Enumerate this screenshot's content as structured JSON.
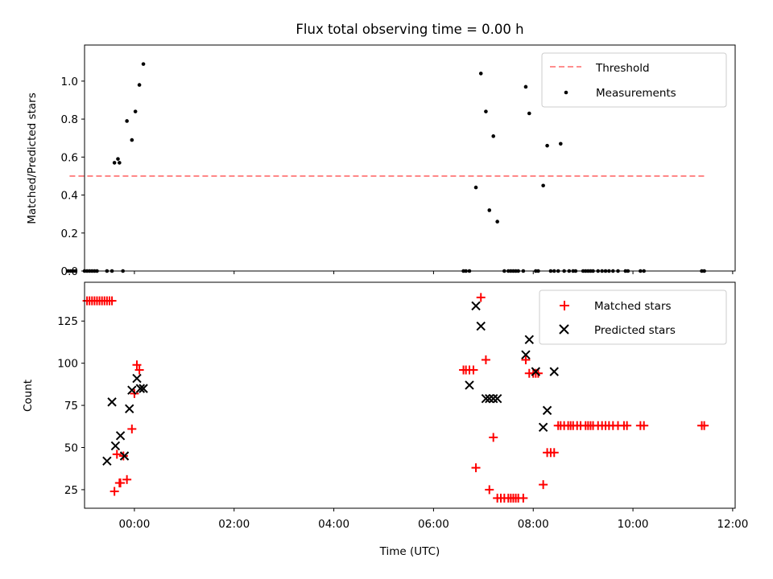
{
  "chart_data": [
    {
      "type": "scatter",
      "title": "Flux total observing time = 0.00 h",
      "xlabel": "",
      "ylabel": "Matched/Predicted stars",
      "xlim": [
        -1.0,
        12.05
      ],
      "ylim": [
        0.0,
        1.19
      ],
      "xticks": [
        0,
        2,
        4,
        6,
        8,
        10,
        12
      ],
      "yticks": [
        0.0,
        0.2,
        0.4,
        0.6,
        0.8,
        1.0
      ],
      "ytick_labels": [
        "0.0",
        "0.2",
        "0.4",
        "0.6",
        "0.8",
        "1.0"
      ],
      "legend_position": "top-right",
      "threshold": {
        "name": "Threshold",
        "value": 0.5,
        "x_range": [
          -1.3,
          11.45
        ],
        "color": "#ff7f7f"
      },
      "series": [
        {
          "name": "Measurements",
          "color": "#000000",
          "x": [
            -1.33,
            -1.28,
            -1.23,
            -1.18,
            -1.0,
            -0.95,
            -0.9,
            -0.85,
            -0.8,
            -0.75,
            -0.55,
            -0.45,
            -0.4,
            -0.33,
            -0.3,
            -0.23,
            -0.15,
            -0.05,
            0.02,
            0.1,
            0.18,
            6.6,
            6.65,
            6.72,
            6.85,
            6.95,
            7.05,
            7.12,
            7.2,
            7.28,
            7.42,
            7.5,
            7.55,
            7.6,
            7.65,
            7.7,
            7.8,
            7.85,
            7.92,
            8.05,
            8.1,
            8.2,
            8.28,
            8.35,
            8.42,
            8.5,
            8.55,
            8.62,
            8.72,
            8.8,
            8.85,
            9.0,
            9.05,
            9.1,
            9.15,
            9.2,
            9.3,
            9.38,
            9.45,
            9.52,
            9.6,
            9.7,
            9.85,
            9.9,
            10.15,
            10.22,
            11.38,
            11.43
          ],
          "y": [
            0.0,
            0.0,
            0.0,
            0.0,
            0.0,
            0.0,
            0.0,
            0.0,
            0.0,
            0.0,
            0.0,
            0.0,
            0.57,
            0.59,
            0.57,
            0.0,
            0.79,
            0.69,
            0.84,
            0.98,
            1.09,
            0.0,
            0.0,
            0.0,
            0.44,
            1.04,
            0.84,
            0.32,
            0.71,
            0.26,
            0.0,
            0.0,
            0.0,
            0.0,
            0.0,
            0.0,
            0.0,
            0.97,
            0.83,
            0.0,
            0.0,
            0.45,
            0.66,
            0.0,
            0.0,
            0.0,
            0.67,
            0.0,
            0.0,
            0.0,
            0.0,
            0.0,
            0.0,
            0.0,
            0.0,
            0.0,
            0.0,
            0.0,
            0.0,
            0.0,
            0.0,
            0.0,
            0.0,
            0.0,
            0.0,
            0.0,
            0.0,
            0.0
          ]
        }
      ]
    },
    {
      "type": "scatter",
      "title": "",
      "xlabel": "Time (UTC)",
      "ylabel": "Count",
      "xlim": [
        -1.0,
        12.05
      ],
      "ylim": [
        14,
        148
      ],
      "xticks": [
        0,
        2,
        4,
        6,
        8,
        10,
        12
      ],
      "xtick_labels": [
        "00:00",
        "02:00",
        "04:00",
        "06:00",
        "08:00",
        "10:00",
        "12:00"
      ],
      "yticks": [
        25,
        50,
        75,
        100,
        125
      ],
      "legend_position": "top-right",
      "series": [
        {
          "name": "Matched stars",
          "color": "#ff0000",
          "marker": "+",
          "x": [
            -0.95,
            -0.9,
            -0.85,
            -0.8,
            -0.75,
            -0.7,
            -0.65,
            -0.6,
            -0.55,
            -0.5,
            -0.45,
            -0.4,
            -0.35,
            -0.3,
            -0.28,
            -0.22,
            -0.15,
            -0.05,
            0.0,
            0.05,
            0.1,
            6.6,
            6.65,
            6.72,
            6.8,
            6.85,
            6.95,
            7.05,
            7.12,
            7.2,
            7.28,
            7.35,
            7.42,
            7.5,
            7.55,
            7.6,
            7.65,
            7.7,
            7.8,
            7.85,
            7.92,
            8.0,
            8.05,
            8.1,
            8.2,
            8.28,
            8.35,
            8.42,
            8.5,
            8.55,
            8.62,
            8.7,
            8.75,
            8.8,
            8.88,
            8.95,
            9.05,
            9.1,
            9.15,
            9.2,
            9.3,
            9.38,
            9.45,
            9.52,
            9.6,
            9.7,
            9.82,
            9.88,
            10.15,
            10.22,
            11.38,
            11.43
          ],
          "y": [
            137,
            137,
            137,
            137,
            137,
            137,
            137,
            137,
            137,
            137,
            137,
            24,
            46,
            29,
            29,
            45,
            31,
            61,
            82,
            99,
            96,
            96,
            96,
            96,
            96,
            38,
            139,
            102,
            25,
            56,
            20,
            20,
            20,
            20,
            20,
            20,
            20,
            20,
            20,
            102,
            94,
            94,
            94,
            94,
            28,
            47,
            47,
            47,
            63,
            63,
            63,
            63,
            63,
            63,
            63,
            63,
            63,
            63,
            63,
            63,
            63,
            63,
            63,
            63,
            63,
            63,
            63,
            63,
            63,
            63,
            63,
            63
          ]
        },
        {
          "name": "Predicted stars",
          "color": "#000000",
          "marker": "x",
          "x": [
            -0.55,
            -0.45,
            -0.38,
            -0.28,
            -0.2,
            -0.1,
            -0.05,
            0.05,
            0.12,
            0.18,
            6.72,
            6.85,
            6.95,
            7.05,
            7.12,
            7.2,
            7.28,
            7.85,
            7.92,
            8.05,
            8.2,
            8.28,
            8.42
          ],
          "y": [
            42,
            77,
            51,
            57,
            45,
            73,
            84,
            91,
            85,
            85,
            87,
            134,
            122,
            79,
            79,
            79,
            79,
            105,
            114,
            95,
            62,
            72,
            95
          ]
        }
      ]
    }
  ]
}
